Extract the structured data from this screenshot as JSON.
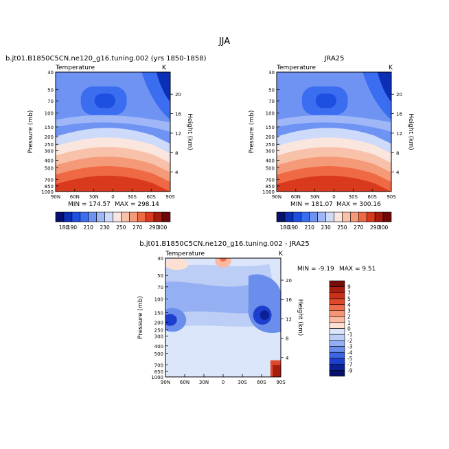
{
  "figure": {
    "title": "JJA"
  },
  "chart_data": [
    {
      "type": "heatmap",
      "title": "b.jt01.B1850C5CN.ne120_g16.tuning.002 (yrs 1850-1858)",
      "subtitle_left": "Temperature",
      "subtitle_right": "K",
      "xlabel": "",
      "ylabel": "Pressure (mb)",
      "ylabel_right": "Height (km)",
      "x_ticks": [
        "90N",
        "60N",
        "30N",
        "0",
        "30S",
        "60S",
        "90S"
      ],
      "y_ticks": [
        "30",
        "50",
        "70",
        "100",
        "150",
        "200",
        "250",
        "300",
        "400",
        "500",
        "700",
        "850",
        "1000"
      ],
      "y_ticks_right": [
        "20",
        "16",
        "12",
        "8",
        "4"
      ],
      "min_label": "MIN = 174.57",
      "max_label": "MAX = 298.14",
      "colorbar_levels": [
        "180",
        "190",
        "200",
        "210",
        "220",
        "230",
        "240",
        "250",
        "260",
        "270",
        "280",
        "290",
        "300"
      ],
      "colorbar_labels": [
        "180",
        "190",
        "210",
        "230",
        "250",
        "270",
        "290",
        "300"
      ]
    },
    {
      "type": "heatmap",
      "title": "JRA25",
      "subtitle_left": "Temperature",
      "subtitle_right": "K",
      "xlabel": "",
      "ylabel": "Pressure (mb)",
      "ylabel_right": "Height (km)",
      "x_ticks": [
        "90N",
        "60N",
        "30N",
        "0",
        "30S",
        "60S",
        "90S"
      ],
      "y_ticks": [
        "30",
        "50",
        "70",
        "100",
        "150",
        "200",
        "250",
        "300",
        "400",
        "500",
        "700",
        "850",
        "1000"
      ],
      "y_ticks_right": [
        "20",
        "16",
        "12",
        "8",
        "4"
      ],
      "min_label": "MIN = 181.07",
      "max_label": "MAX = 300.16",
      "colorbar_levels": [
        "180",
        "190",
        "200",
        "210",
        "220",
        "230",
        "240",
        "250",
        "260",
        "270",
        "280",
        "290",
        "300"
      ],
      "colorbar_labels": [
        "180",
        "190",
        "210",
        "230",
        "250",
        "270",
        "290",
        "300"
      ]
    },
    {
      "type": "heatmap",
      "title": "b.jt01.B1850C5CN.ne120_g16.tuning.002 - JRA25",
      "subtitle_left": "Temperature",
      "subtitle_right": "K",
      "xlabel": "",
      "ylabel": "Pressure (mb)",
      "ylabel_right": "Height (km)",
      "x_ticks": [
        "90N",
        "60N",
        "30N",
        "0",
        "30S",
        "60S",
        "90S"
      ],
      "y_ticks": [
        "30",
        "50",
        "70",
        "100",
        "150",
        "200",
        "250",
        "300",
        "400",
        "500",
        "700",
        "850",
        "1000"
      ],
      "y_ticks_right": [
        "20",
        "16",
        "12",
        "8",
        "4"
      ],
      "min_label": "MIN = -9.19",
      "max_label": "MAX = 9.51",
      "colorbar_labels": [
        "9",
        "7",
        "5",
        "4",
        "3",
        "2",
        "1",
        "0",
        "-1",
        "-2",
        "-3",
        "-4",
        "-5",
        "-7",
        "-9"
      ]
    }
  ],
  "colors": {
    "temp_scale": [
      "#08106e",
      "#0b2fb5",
      "#1d4fe0",
      "#3b6df0",
      "#6e93f3",
      "#9fb7f7",
      "#cddaf9",
      "#fbe6df",
      "#f8c2aa",
      "#f59a78",
      "#ef6a44",
      "#d9391d",
      "#a81b0c",
      "#6e0806"
    ],
    "diff_scale": [
      "#760d08",
      "#a81d0f",
      "#c8301a",
      "#e04a2a",
      "#f06e4b",
      "#f79473",
      "#fab9a0",
      "#fde0d2",
      "#dbe6fb",
      "#bccdf6",
      "#94aff2",
      "#6b8deb",
      "#3f66e2",
      "#1c3fcd",
      "#0b1f97",
      "#05106a"
    ]
  }
}
